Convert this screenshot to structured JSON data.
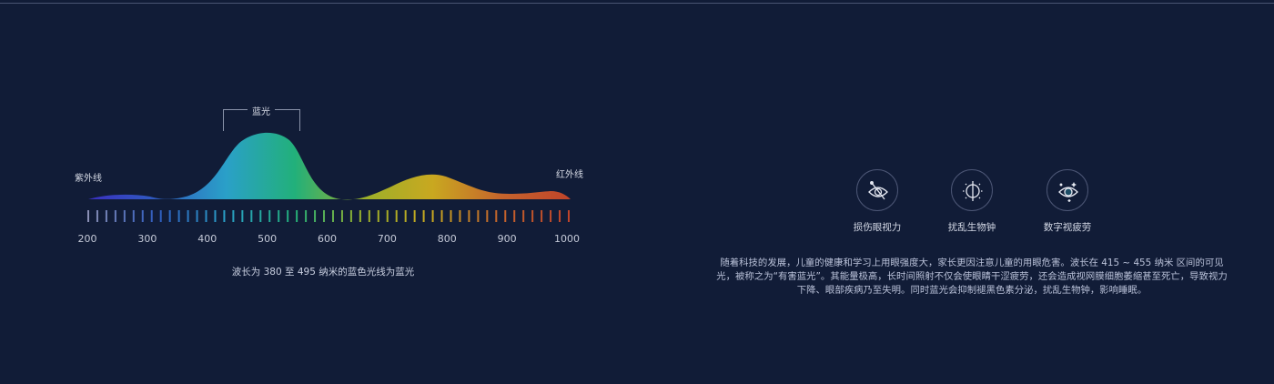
{
  "spectrum": {
    "uv_label": "紫外线",
    "ir_label": "红外线",
    "blue_label": "蓝光",
    "axis_ticks": [
      "200",
      "300",
      "400",
      "500",
      "600",
      "700",
      "800",
      "900",
      "1000"
    ],
    "caption": "波长为 380 至 495 纳米的蓝色光线为蓝光",
    "gradient_colors": [
      "#3a2fc0",
      "#2f5cc0",
      "#2aa0c8",
      "#22b07a",
      "#9bb02a",
      "#c9a820",
      "#c5642c",
      "#c0442a"
    ]
  },
  "hazards": [
    {
      "icon": "eye-damage-icon",
      "label": "损伤眼视力"
    },
    {
      "icon": "biological-clock-icon",
      "label": "扰乱生物钟"
    },
    {
      "icon": "digital-eye-strain-icon",
      "label": "数字视疲劳"
    }
  ],
  "description": "随着科技的发展，儿童的健康和学习上用眼强度大，家长更因注意儿童的用眼危害。波长在 415 ~ 455 纳米 区间的可见光，被称之为“有害蓝光”。其能量极高，长时间照射不仅会使眼睛干涩疲劳，还会造成视网膜细胞萎缩甚至死亡，导致视力下降、眼部疾病乃至失明。同时蓝光会抑制褪黑色素分泌，扰乱生物钟，影响睡眠。"
}
